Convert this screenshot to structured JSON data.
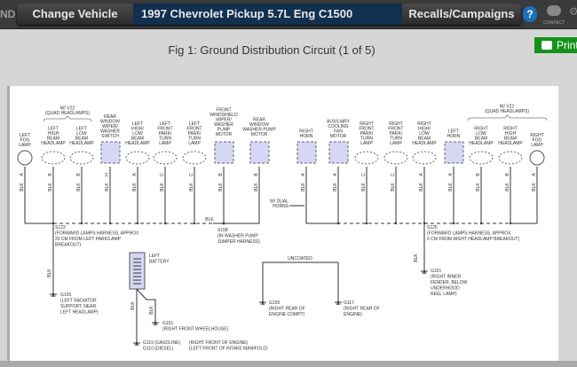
{
  "topbar": {
    "brand_fragment": "ND",
    "change_vehicle": "Change Vehicle",
    "vehicle": "1997 Chevrolet Pickup 5.7L Eng C1500",
    "recalls": "Recalls/Campaigns",
    "help": "?",
    "contact": "CONTACT"
  },
  "figure": {
    "title": "Fig 1: Ground Distribution Circuit (1 of 5)",
    "print": "Print"
  },
  "diagram": {
    "wire_color": "BLK",
    "bus_label": "BLK",
    "quad_left": [
      "W/ V22",
      "(QUAD HEADLAMPS)"
    ],
    "quad_right": [
      "W/ V22",
      "(QUAD HEADLAMPS)"
    ],
    "dual_horns": [
      "W/ DUAL",
      "HORNS"
    ],
    "components": [
      {
        "label": [
          "LEFT",
          "FOG",
          "LAMP"
        ],
        "shape": "circle",
        "pin": "A"
      },
      {
        "label": [
          "LEFT",
          "HIGH",
          "BEAM",
          "HEADLAMP"
        ],
        "shape": "oval",
        "pin": "B"
      },
      {
        "label": [
          "LEFT",
          "LOW",
          "BEAM",
          "HEADLAMP"
        ],
        "shape": "oval",
        "pin": "B"
      },
      {
        "label": [
          "REAR",
          "WINDOW",
          "WIPER/",
          "WASHER",
          "SWITCH"
        ],
        "shape": "box",
        "pin": "H"
      },
      {
        "label": [
          "LEFT",
          "HIGH/",
          "LOW",
          "BEAM",
          "HEADLAMP"
        ],
        "shape": "oval",
        "pin": "A"
      },
      {
        "label": [
          "LEFT",
          "FRONT",
          "PARK/",
          "TURN",
          "LAMP"
        ],
        "shape": "oval",
        "pin": "C"
      },
      {
        "label": [
          "LEFT",
          "FRONT",
          "PARK/",
          "TURN",
          "LAMP"
        ],
        "shape": "oval",
        "pin": "C"
      },
      {
        "label": [
          "FRONT",
          "WINDSHIELD",
          "WIPER/",
          "WASHER",
          "PUMP",
          "MOTOR"
        ],
        "shape": "box",
        "pin": "B"
      },
      {
        "label": [
          "REAR",
          "WINDOW",
          "WASHER PUMP",
          "MOTOR"
        ],
        "shape": "box",
        "pin": "B"
      },
      {
        "label": [
          "RIGHT",
          "HORN"
        ],
        "shape": "box",
        "pin": "A"
      },
      {
        "label": [
          "AUXILIARY",
          "COOLING",
          "FAN",
          "MOTOR"
        ],
        "shape": "box",
        "pin": "A"
      },
      {
        "label": [
          "RIGHT",
          "FRONT",
          "PARK/",
          "TURN",
          "LAMP"
        ],
        "shape": "oval",
        "pin": "C"
      },
      {
        "label": [
          "RIGHT",
          "FRONT",
          "PARK/",
          "TURN",
          "LAMP"
        ],
        "shape": "oval",
        "pin": "C"
      },
      {
        "label": [
          "RIGHT",
          "HIGH/",
          "LOW",
          "BEAM",
          "HEADLAMP"
        ],
        "shape": "oval",
        "pin": "A"
      },
      {
        "label": [
          "LEFT",
          "HORN"
        ],
        "shape": "box",
        "pin": "A"
      },
      {
        "label": [
          "RIGHT",
          "LOW",
          "BEAM",
          "HEADLAMP"
        ],
        "shape": "oval",
        "pin": "B"
      },
      {
        "label": [
          "RIGHT",
          "HIGH",
          "BEAM",
          "HEADLAMP"
        ],
        "shape": "oval",
        "pin": "B"
      },
      {
        "label": [
          "RIGHT",
          "FOG",
          "LAMP"
        ],
        "shape": "circle",
        "pin": "A"
      }
    ],
    "splices": [
      {
        "label": [
          "S123",
          "(FORWARD LAMPS HARNESS, APPROX",
          "20 CM FROM LEFT PARK/LAMP",
          "BREAKOUT)"
        ]
      },
      {
        "label": [
          "S158",
          "(IN WASHER PUMP",
          "JUMPER HARNESS)"
        ]
      },
      {
        "label": [
          "S125",
          "(FORWARD LAMPS HARNESS, APPROX",
          "5 CM FROM RIGHT HEADLAMP BREAKOUT)"
        ]
      }
    ],
    "battery": [
      "LEFT",
      "BATTERY"
    ],
    "uncoated": "UNCOATED",
    "grounds": [
      {
        "label": [
          "G105",
          "(LEFT RADIATOR",
          "SUPPORT, NEAR",
          "LEFT HEADLAMP)"
        ]
      },
      {
        "label": [
          "G101",
          "(RIGHT FRONT WHEELHOUSE)"
        ]
      },
      {
        "label": [
          "G119 (GASOLINE)",
          "G110 (DIESEL)"
        ]
      },
      {
        "label": [
          "G105",
          "(RIGHT REAR OF",
          "ENGINE COMPT)"
        ]
      },
      {
        "label": [
          "G117",
          "(RIGHT REAR OF",
          "ENGINE)"
        ]
      },
      {
        "label": [
          "G101",
          "(RIGHT INNER",
          "FENDER, BELOW",
          "UNDERHOOD",
          "REEL LAMP)"
        ]
      }
    ],
    "ground_notes": [
      "(RIGHT FRONT OF ENGINE)",
      "(LEFT FRONT OF INTAKE MANIFOLD)"
    ],
    "colors": {
      "connector_fill": "#d6d6f5",
      "wire": "#333333"
    }
  }
}
